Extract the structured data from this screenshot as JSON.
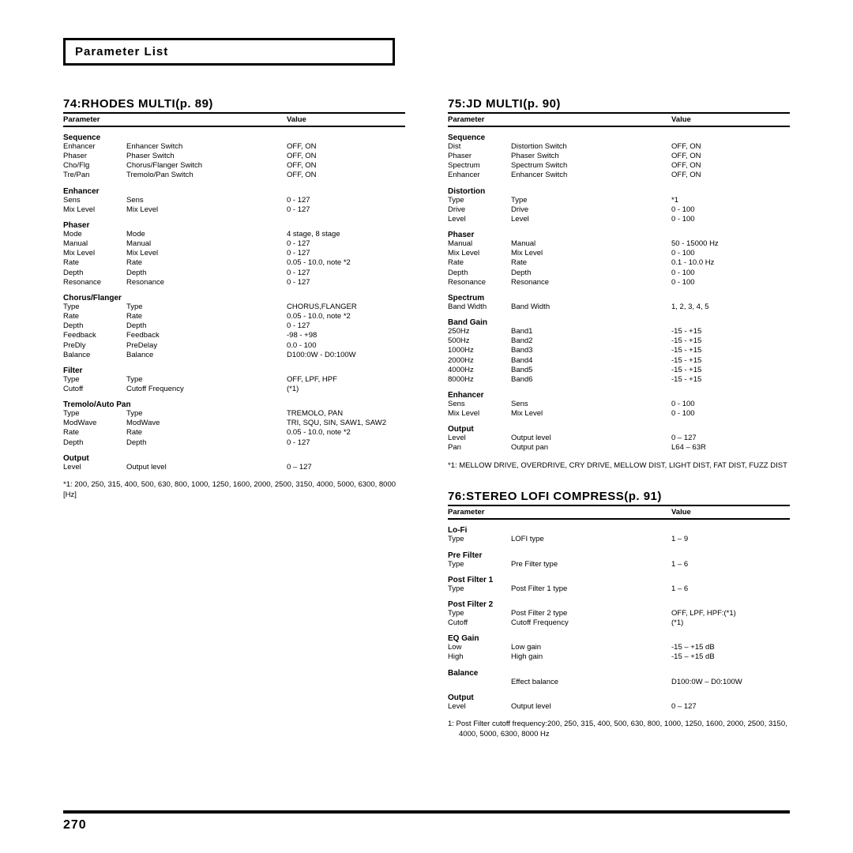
{
  "page_title": "Parameter List",
  "page_number": "270",
  "hdr_param": "Parameter",
  "hdr_value": "Value",
  "left": {
    "title": "74:RHODES MULTI(p. 89)",
    "groups": [
      {
        "name": "Sequence",
        "rows": [
          [
            "Enhancer",
            "Enhancer Switch",
            "OFF, ON"
          ],
          [
            "Phaser",
            "Phaser Switch",
            "OFF, ON"
          ],
          [
            "Cho/Flg",
            "Chorus/Flanger Switch",
            "OFF, ON"
          ],
          [
            "Tre/Pan",
            "Tremolo/Pan Switch",
            "OFF, ON"
          ]
        ]
      },
      {
        "name": "Enhancer",
        "rows": [
          [
            "Sens",
            "Sens",
            "0 - 127"
          ],
          [
            "Mix Level",
            "Mix Level",
            "0 - 127"
          ]
        ]
      },
      {
        "name": "Phaser",
        "rows": [
          [
            "Mode",
            "Mode",
            "4 stage, 8 stage"
          ],
          [
            "Manual",
            "Manual",
            "0 - 127"
          ],
          [
            "Mix Level",
            "Mix Level",
            "0 - 127"
          ],
          [
            "Rate",
            "Rate",
            "0.05 - 10.0, note *2"
          ],
          [
            "Depth",
            "Depth",
            "0 - 127"
          ],
          [
            "Resonance",
            "Resonance",
            "0 - 127"
          ]
        ]
      },
      {
        "name": "Chorus/Flanger",
        "rows": [
          [
            "Type",
            "Type",
            "CHORUS,FLANGER"
          ],
          [
            "Rate",
            "Rate",
            "0.05 - 10.0, note *2"
          ],
          [
            "Depth",
            "Depth",
            "0 - 127"
          ],
          [
            "Feedback",
            "Feedback",
            "-98 - +98"
          ],
          [
            "PreDly",
            "PreDelay",
            "0.0 - 100"
          ],
          [
            "Balance",
            "Balance",
            "D100:0W - D0:100W"
          ]
        ]
      },
      {
        "name": "Filter",
        "rows": [
          [
            "Type",
            "Type",
            "OFF, LPF, HPF"
          ],
          [
            "Cutoff",
            "Cutoff Frequency",
            "(*1)"
          ]
        ]
      },
      {
        "name": "Tremolo/Auto Pan",
        "rows": [
          [
            "Type",
            "Type",
            "TREMOLO, PAN"
          ],
          [
            "ModWave",
            "ModWave",
            "TRI, SQU, SIN, SAW1, SAW2"
          ],
          [
            "Rate",
            "Rate",
            "0.05 - 10.0, note *2"
          ],
          [
            "Depth",
            "Depth",
            "0 - 127"
          ]
        ]
      },
      {
        "name": "Output",
        "rows": [
          [
            "Level",
            "Output level",
            "0 – 127"
          ]
        ]
      }
    ],
    "footnote": "*1: 200, 250, 315, 400, 500, 630, 800, 1000, 1250, 1600, 2000, 2500, 3150, 4000, 5000, 6300, 8000 [Hz]"
  },
  "right1": {
    "title": "75:JD MULTI(p. 90)",
    "groups": [
      {
        "name": "Sequence",
        "rows": [
          [
            "Dist",
            "Distortion Switch",
            "OFF, ON"
          ],
          [
            "Phaser",
            "Phaser Switch",
            "OFF, ON"
          ],
          [
            "Spectrum",
            "Spectrum Switch",
            "OFF, ON"
          ],
          [
            "Enhancer",
            "Enhancer Switch",
            "OFF, ON"
          ]
        ]
      },
      {
        "name": "Distortion",
        "rows": [
          [
            "Type",
            "Type",
            "*1"
          ],
          [
            "Drive",
            "Drive",
            "0 - 100"
          ],
          [
            "Level",
            "Level",
            "0 - 100"
          ]
        ]
      },
      {
        "name": "Phaser",
        "rows": [
          [
            "Manual",
            "Manual",
            "50 - 15000 Hz"
          ],
          [
            "Mix Level",
            "Mix Level",
            "0 - 100"
          ],
          [
            "Rate",
            "Rate",
            "0.1 - 10.0 Hz"
          ],
          [
            "Depth",
            "Depth",
            "0 - 100"
          ],
          [
            "Resonance",
            "Resonance",
            "0 - 100"
          ]
        ]
      },
      {
        "name": "Spectrum",
        "rows": [
          [
            "Band Width",
            "Band Width",
            "1, 2, 3, 4, 5"
          ]
        ]
      },
      {
        "name": "Band Gain",
        "rows": [
          [
            "250Hz",
            "Band1",
            "-15 - +15"
          ],
          [
            "500Hz",
            "Band2",
            "-15 - +15"
          ],
          [
            "1000Hz",
            "Band3",
            "-15 - +15"
          ],
          [
            "2000Hz",
            "Band4",
            "-15 - +15"
          ],
          [
            "4000Hz",
            "Band5",
            "-15 - +15"
          ],
          [
            "8000Hz",
            "Band6",
            "-15 - +15"
          ]
        ]
      },
      {
        "name": "Enhancer",
        "rows": [
          [
            "Sens",
            "Sens",
            "0 - 100"
          ],
          [
            "Mix Level",
            "Mix Level",
            "0 - 100"
          ]
        ]
      },
      {
        "name": "Output",
        "rows": [
          [
            "Level",
            "Output level",
            "0 – 127"
          ],
          [
            "Pan",
            "Output pan",
            "L64 – 63R"
          ]
        ]
      }
    ],
    "footnote": "*1: MELLOW DRIVE, OVERDRIVE, CRY DRIVE, MELLOW DIST, LIGHT DIST, FAT DIST, FUZZ DIST"
  },
  "right2": {
    "title": "76:STEREO LOFI COMPRESS(p. 91)",
    "groups": [
      {
        "name": "Lo-Fi",
        "rows": [
          [
            "Type",
            "LOFI type",
            "1 – 9"
          ]
        ]
      },
      {
        "name": "Pre Filter",
        "rows": [
          [
            "Type",
            "Pre Filter type",
            "1 – 6"
          ]
        ]
      },
      {
        "name": "Post Filter 1",
        "rows": [
          [
            "Type",
            "Post Filter 1 type",
            "1 – 6"
          ]
        ]
      },
      {
        "name": "Post Filter 2",
        "rows": [
          [
            "Type",
            "Post Filter 2 type",
            "OFF,  LPF,  HPF:(*1)"
          ],
          [
            "Cutoff",
            "Cutoff Frequency",
            "(*1)"
          ]
        ]
      },
      {
        "name": "EQ Gain",
        "rows": [
          [
            "Low",
            "Low gain",
            "-15 – +15 dB"
          ],
          [
            "High",
            "High gain",
            "-15 – +15 dB"
          ]
        ]
      },
      {
        "name": "Balance",
        "rows": [
          [
            "",
            "Effect balance",
            "D100:0W – D0:100W"
          ]
        ]
      },
      {
        "name": "Output",
        "rows": [
          [
            "Level",
            "Output level",
            "0 – 127"
          ]
        ]
      }
    ],
    "footnote": "1:   Post Filter cutoff frequency:200, 250, 315, 400, 500, 630, 800, 1000, 1250, 1600, 2000, 2500, 3150, 4000, 5000, 6300, 8000 Hz"
  }
}
